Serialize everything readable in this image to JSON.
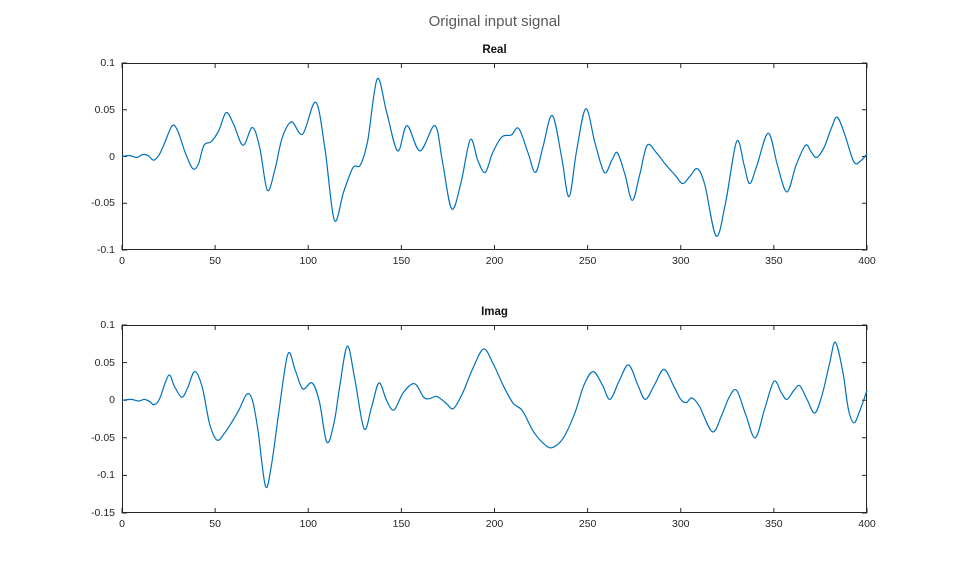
{
  "figure": {
    "title": "Original input signal",
    "background_color": "#ffffff",
    "line_color": "#0072BD",
    "axis_color": "#262626",
    "title_color": "#595959"
  },
  "chart_data": [
    {
      "type": "line",
      "title": "Real",
      "xlabel": "",
      "ylabel": "",
      "grid": false,
      "legend": null,
      "xlim": [
        0,
        400
      ],
      "ylim": [
        -0.1,
        0.1
      ],
      "x_tick_labels": [
        "0",
        "50",
        "100",
        "150",
        "200",
        "250",
        "300",
        "350",
        "400"
      ],
      "x_tick_values": [
        0,
        50,
        100,
        150,
        200,
        250,
        300,
        350,
        400
      ],
      "y_tick_labels": [
        "0.1",
        "0.05",
        "0",
        "-0.05",
        "-0.1"
      ],
      "y_tick_values": [
        0.1,
        0.05,
        0,
        -0.05,
        -0.1
      ],
      "x": [
        0,
        4,
        8,
        11,
        14,
        17,
        20,
        23,
        27,
        30,
        34,
        38,
        41,
        44,
        48,
        52,
        56,
        60,
        65,
        70,
        74,
        78,
        82,
        86,
        91,
        97,
        104,
        109,
        114,
        119,
        124,
        128,
        132,
        137,
        142,
        148,
        153,
        160,
        168,
        172,
        177,
        182,
        187,
        191,
        195,
        199,
        204,
        209,
        213,
        218,
        222,
        226,
        231,
        236,
        240,
        244,
        249,
        254,
        259,
        263,
        266,
        270,
        274,
        278,
        282,
        287,
        292,
        297,
        301,
        305,
        309,
        313,
        319,
        324,
        330,
        334,
        337,
        341,
        347,
        352,
        357,
        362,
        367,
        370,
        373,
        377,
        381,
        384,
        388,
        393,
        397,
        400
      ],
      "y": [
        0,
        0.001,
        -0.001,
        0.002,
        0.001,
        -0.004,
        0.002,
        0.015,
        0.033,
        0.027,
        0.004,
        -0.013,
        -0.008,
        0.012,
        0.016,
        0.028,
        0.047,
        0.034,
        0.012,
        0.031,
        0.009,
        -0.036,
        -0.015,
        0.02,
        0.037,
        0.024,
        0.058,
        0.008,
        -0.068,
        -0.038,
        -0.012,
        -0.009,
        0.018,
        0.083,
        0.048,
        0.006,
        0.033,
        0.006,
        0.033,
        -0.005,
        -0.056,
        -0.028,
        0.018,
        -0.004,
        -0.017,
        0.004,
        0.021,
        0.023,
        0.03,
        0.004,
        -0.017,
        0.01,
        0.044,
        0,
        -0.043,
        0.005,
        0.051,
        0.014,
        -0.017,
        -0.004,
        0.004,
        -0.019,
        -0.047,
        -0.019,
        0.012,
        0.004,
        -0.009,
        -0.02,
        -0.029,
        -0.021,
        -0.013,
        -0.031,
        -0.085,
        -0.05,
        0.016,
        -0.009,
        -0.029,
        -0.009,
        0.025,
        -0.01,
        -0.038,
        -0.009,
        0.012,
        0.005,
        -0.001,
        0.01,
        0.031,
        0.042,
        0.024,
        -0.006,
        -0.004,
        0.003
      ]
    },
    {
      "type": "line",
      "title": "Imag",
      "xlabel": "",
      "ylabel": "",
      "grid": false,
      "legend": null,
      "xlim": [
        0,
        400
      ],
      "ylim": [
        -0.15,
        0.1
      ],
      "x_tick_labels": [
        "0",
        "50",
        "100",
        "150",
        "200",
        "250",
        "300",
        "350",
        "400"
      ],
      "x_tick_values": [
        0,
        50,
        100,
        150,
        200,
        250,
        300,
        350,
        400
      ],
      "y_tick_labels": [
        "0.1",
        "0.05",
        "0",
        "-0.05",
        "-0.1",
        "-0.15"
      ],
      "y_tick_values": [
        0.1,
        0.05,
        0,
        -0.05,
        -0.1,
        -0.15
      ],
      "x": [
        0,
        5,
        9,
        12,
        15,
        17,
        20,
        25,
        28,
        32,
        35,
        39,
        43,
        47,
        51,
        55,
        59,
        63,
        67,
        70,
        73,
        77,
        80,
        84,
        89,
        93,
        97,
        102,
        106,
        110,
        114,
        117,
        121,
        125,
        130,
        134,
        138,
        142,
        146,
        151,
        157,
        162,
        165,
        169,
        174,
        178,
        183,
        188,
        194,
        199,
        205,
        210,
        215,
        221,
        228,
        232,
        237,
        243,
        248,
        253,
        258,
        262,
        267,
        272,
        277,
        281,
        286,
        291,
        296,
        300,
        303,
        306,
        310,
        317,
        322,
        326,
        330,
        335,
        340,
        345,
        350,
        354,
        357,
        361,
        364,
        368,
        372,
        376,
        380,
        383,
        387,
        390,
        393,
        396,
        400
      ],
      "y": [
        0,
        0.001,
        -0.001,
        0.001,
        -0.002,
        -0.006,
        0.001,
        0.033,
        0.019,
        0.004,
        0.015,
        0.038,
        0.018,
        -0.031,
        -0.053,
        -0.044,
        -0.029,
        -0.012,
        0.008,
        0,
        -0.04,
        -0.114,
        -0.09,
        -0.02,
        0.061,
        0.04,
        0.015,
        0.023,
        -0.002,
        -0.056,
        -0.028,
        0.02,
        0.072,
        0.028,
        -0.038,
        -0.009,
        0.023,
        0,
        -0.013,
        0.01,
        0.022,
        0.004,
        0.002,
        0.005,
        -0.004,
        -0.011,
        0.01,
        0.04,
        0.068,
        0.05,
        0.018,
        -0.004,
        -0.014,
        -0.042,
        -0.061,
        -0.062,
        -0.05,
        -0.018,
        0.02,
        0.038,
        0.02,
        0.001,
        0.026,
        0.047,
        0.02,
        0.001,
        0.021,
        0.041,
        0.02,
        0.001,
        -0.003,
        0.003,
        -0.008,
        -0.042,
        -0.02,
        0.004,
        0.013,
        -0.02,
        -0.05,
        -0.012,
        0.025,
        0.01,
        0.001,
        0.014,
        0.019,
        0,
        -0.017,
        0.008,
        0.05,
        0.077,
        0.038,
        -0.012,
        -0.03,
        -0.015,
        0.013
      ]
    }
  ]
}
